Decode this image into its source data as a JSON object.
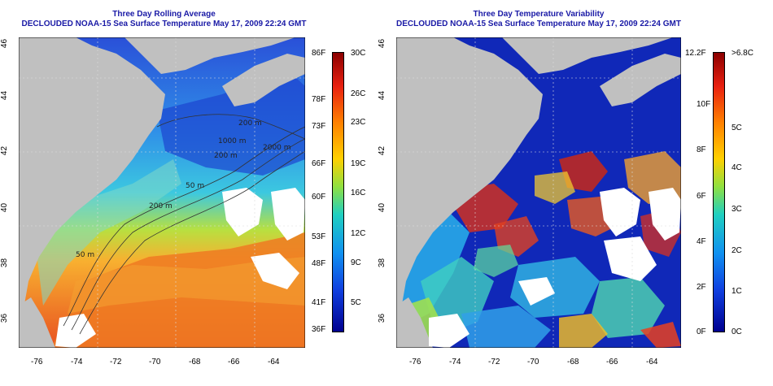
{
  "left_panel": {
    "title_line1": "Three Day Rolling Average",
    "title_line2": "DECLOUDED NOAA-15 Sea Surface Temperature May 17, 2009 22:24 GMT",
    "contour_labels": [
      "200 m",
      "2000 m",
      "50 m",
      "200 m",
      "50 m",
      "200 m",
      "1000 m"
    ],
    "colorbar": {
      "fahrenheit": [
        "86F",
        "78F",
        "73F",
        "66F",
        "60F",
        "53F",
        "48F",
        "41F",
        "36F"
      ],
      "celsius": [
        "30C",
        "26C",
        "23C",
        "19C",
        "16C",
        "12C",
        "9C",
        "5C"
      ]
    }
  },
  "right_panel": {
    "title_line1": "Three Day Temperature Variability",
    "title_line2": "DECLOUDED NOAA-15 Sea Surface Temperature May 17, 2009 22:24 GMT",
    "colorbar": {
      "fahrenheit": [
        "12.2F",
        "10F",
        "8F",
        "6F",
        "4F",
        "2F",
        "0F"
      ],
      "celsius": [
        ">6.8C",
        "5C",
        "4C",
        "3C",
        "2C",
        "1C",
        "0C"
      ]
    }
  },
  "axes": {
    "lon_ticks": [
      "-76",
      "-74",
      "-72",
      "-70",
      "-68",
      "-66",
      "-64"
    ],
    "lat_ticks": [
      "46",
      "44",
      "42",
      "40",
      "38",
      "36"
    ]
  },
  "colors": {
    "title": "#1a1aa6",
    "land": "#c0c0c0",
    "cloud": "#ffffff"
  }
}
